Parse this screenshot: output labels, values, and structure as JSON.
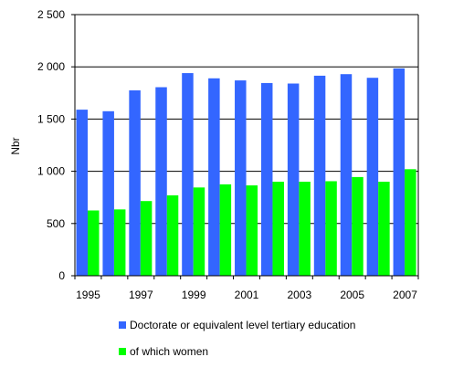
{
  "chart_data": {
    "type": "bar",
    "title": "",
    "xlabel": "",
    "ylabel": "Nbr",
    "ylim": [
      0,
      2500
    ],
    "yticks": [
      0,
      500,
      1000,
      1500,
      2000,
      2500
    ],
    "ytick_labels": [
      "0",
      "500",
      "1 000",
      "1 500",
      "2 000",
      "2 500"
    ],
    "categories": [
      "1995",
      "1996",
      "1997",
      "1998",
      "1999",
      "2000",
      "2001",
      "2002",
      "2003",
      "2004",
      "2005",
      "2006",
      "2007"
    ],
    "xtick_labels": [
      "1995",
      "",
      "1997",
      "",
      "1999",
      "",
      "2001",
      "",
      "2003",
      "",
      "2005",
      "",
      "2007"
    ],
    "grid": true,
    "legend_position": "bottom",
    "series": [
      {
        "name": "Doctorate or equivalent level  tertiary education",
        "color": "#3366ff",
        "values": [
          1590,
          1575,
          1775,
          1805,
          1940,
          1890,
          1870,
          1845,
          1840,
          1915,
          1930,
          1895,
          1985
        ]
      },
      {
        "name": "of which women",
        "color": "#00ff00",
        "values": [
          625,
          635,
          715,
          770,
          845,
          875,
          865,
          900,
          900,
          905,
          945,
          900,
          1020
        ]
      }
    ]
  }
}
